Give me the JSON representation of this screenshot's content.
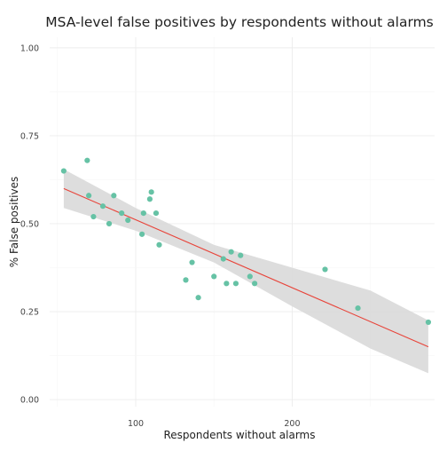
{
  "chart_data": {
    "type": "scatter",
    "title": "MSA-level false positives by respondents without alarms",
    "xlabel": "Respondents without alarms",
    "ylabel": "% False positives",
    "xlim": [
      45,
      291
    ],
    "ylim": [
      -0.02,
      1.03
    ],
    "x_ticks": [
      100,
      200
    ],
    "y_ticks": [
      0.0,
      0.25,
      0.5,
      0.75,
      1.0
    ],
    "x_tick_labels": [
      "100",
      "200"
    ],
    "y_tick_labels": [
      "0.00",
      "0.25",
      "0.50",
      "0.75",
      "1.00"
    ],
    "grid": true,
    "legend": "none",
    "point_color": "#66c2a5",
    "fit_line_color": "#e8443a",
    "band_color": "#d9d9d9",
    "points": [
      {
        "x": 54,
        "y": 0.65
      },
      {
        "x": 69,
        "y": 0.68
      },
      {
        "x": 70,
        "y": 0.58
      },
      {
        "x": 73,
        "y": 0.52
      },
      {
        "x": 79,
        "y": 0.55
      },
      {
        "x": 83,
        "y": 0.5
      },
      {
        "x": 86,
        "y": 0.58
      },
      {
        "x": 91,
        "y": 0.53
      },
      {
        "x": 95,
        "y": 0.51
      },
      {
        "x": 104,
        "y": 0.47
      },
      {
        "x": 105,
        "y": 0.53
      },
      {
        "x": 109,
        "y": 0.57
      },
      {
        "x": 110,
        "y": 0.59
      },
      {
        "x": 113,
        "y": 0.53
      },
      {
        "x": 115,
        "y": 0.44
      },
      {
        "x": 132,
        "y": 0.34
      },
      {
        "x": 136,
        "y": 0.39
      },
      {
        "x": 140,
        "y": 0.29
      },
      {
        "x": 150,
        "y": 0.35
      },
      {
        "x": 156,
        "y": 0.4
      },
      {
        "x": 158,
        "y": 0.33
      },
      {
        "x": 161,
        "y": 0.42
      },
      {
        "x": 164,
        "y": 0.33
      },
      {
        "x": 167,
        "y": 0.41
      },
      {
        "x": 173,
        "y": 0.35
      },
      {
        "x": 176,
        "y": 0.33
      },
      {
        "x": 221,
        "y": 0.37
      },
      {
        "x": 242,
        "y": 0.26
      },
      {
        "x": 287,
        "y": 0.22
      }
    ],
    "fit_line": [
      {
        "x": 54,
        "y": 0.6
      },
      {
        "x": 287,
        "y": 0.15
      }
    ],
    "confidence_band": [
      {
        "x": 54,
        "lo": 0.545,
        "hi": 0.655
      },
      {
        "x": 100,
        "lo": 0.48,
        "hi": 0.545
      },
      {
        "x": 150,
        "lo": 0.39,
        "hi": 0.44
      },
      {
        "x": 200,
        "lo": 0.265,
        "hi": 0.375
      },
      {
        "x": 250,
        "lo": 0.145,
        "hi": 0.31
      },
      {
        "x": 287,
        "lo": 0.075,
        "hi": 0.225
      }
    ]
  }
}
